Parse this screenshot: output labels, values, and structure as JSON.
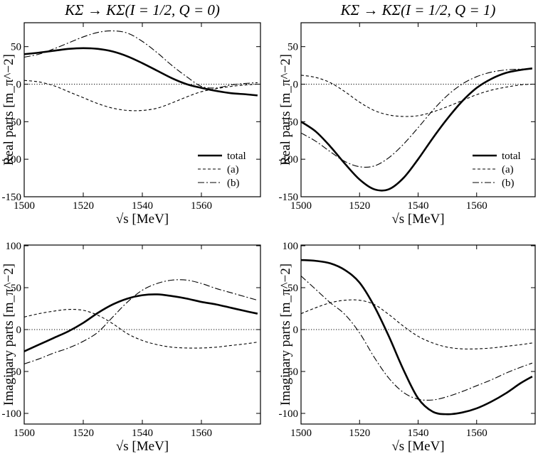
{
  "chart_data": [
    {
      "type": "line",
      "title": "KΣ → KΣ(I = 1/2, Q = 0)",
      "xlabel": "√s  [MeV]",
      "ylabel": "Real parts [m_π^−2]",
      "xlim": [
        1500,
        1580
      ],
      "ylim": [
        -150,
        80
      ],
      "xticks": [
        1500,
        1520,
        1540,
        1560
      ],
      "xtick_labels": [
        "1500",
        "1520",
        "1540",
        "1560"
      ],
      "yticks": [
        -150,
        -100,
        -50,
        0,
        50
      ],
      "ytick_labels": [
        "-150",
        "-100",
        "-50",
        "0",
        "50"
      ],
      "legend_placement": "bottom-right",
      "series": [
        {
          "name": "total",
          "style": "solid-thick",
          "x": [
            1500,
            1505,
            1510,
            1515,
            1520,
            1525,
            1530,
            1535,
            1540,
            1545,
            1550,
            1555,
            1560,
            1565,
            1570,
            1575,
            1579
          ],
          "values": [
            40,
            42,
            44.5,
            47,
            48,
            47,
            43.5,
            37,
            28,
            18,
            8,
            0,
            -5,
            -9,
            -12,
            -13.5,
            -15
          ]
        },
        {
          "name": "(a)",
          "style": "dashed",
          "x": [
            1500,
            1505,
            1510,
            1515,
            1520,
            1525,
            1530,
            1535,
            1540,
            1545,
            1550,
            1555,
            1560,
            1565,
            1570,
            1575,
            1579
          ],
          "values": [
            5,
            3,
            -2,
            -10,
            -18,
            -26,
            -32,
            -35,
            -35,
            -32,
            -25,
            -17,
            -10,
            -6,
            -3,
            -1,
            0
          ]
        },
        {
          "name": "(b)",
          "style": "dash-dot",
          "x": [
            1500,
            1505,
            1510,
            1515,
            1520,
            1525,
            1530,
            1535,
            1540,
            1545,
            1550,
            1555,
            1560,
            1565,
            1570,
            1575,
            1579
          ],
          "values": [
            36,
            40,
            47,
            55,
            63,
            69,
            71,
            68,
            57,
            42,
            25,
            10,
            -3,
            -5,
            -1,
            1,
            2
          ]
        }
      ]
    },
    {
      "type": "line",
      "title": "KΣ → KΣ(I = 1/2, Q = 1)",
      "xlabel": "√s  [MeV]",
      "ylabel": "Real parts [m_π^−2]",
      "xlim": [
        1500,
        1580
      ],
      "ylim": [
        -150,
        80
      ],
      "xticks": [
        1500,
        1520,
        1540,
        1560
      ],
      "xtick_labels": [
        "1500",
        "1520",
        "1540",
        "1560"
      ],
      "yticks": [
        -150,
        -100,
        -50,
        0,
        50
      ],
      "ytick_labels": [
        "-150",
        "-100",
        "-50",
        "0",
        "50"
      ],
      "legend_placement": "bottom-right",
      "series": [
        {
          "name": "total",
          "style": "solid-thick",
          "x": [
            1500,
            1505,
            1510,
            1515,
            1520,
            1525,
            1530,
            1535,
            1540,
            1545,
            1550,
            1555,
            1560,
            1565,
            1570,
            1575,
            1579
          ],
          "values": [
            -50,
            -63,
            -83,
            -106,
            -127,
            -140,
            -140,
            -125,
            -100,
            -72,
            -46,
            -23,
            -5,
            7,
            15,
            19,
            21
          ]
        },
        {
          "name": "(a)",
          "style": "dashed",
          "x": [
            1500,
            1505,
            1510,
            1515,
            1520,
            1525,
            1530,
            1535,
            1540,
            1545,
            1550,
            1555,
            1560,
            1565,
            1570,
            1575,
            1579
          ],
          "values": [
            12,
            9,
            2,
            -10,
            -24,
            -35,
            -41,
            -43,
            -42,
            -37,
            -30,
            -22,
            -14,
            -8,
            -4,
            -1,
            0
          ]
        },
        {
          "name": "(b)",
          "style": "dash-dot",
          "x": [
            1500,
            1505,
            1510,
            1515,
            1520,
            1525,
            1530,
            1535,
            1540,
            1545,
            1550,
            1555,
            1560,
            1565,
            1570,
            1575,
            1579
          ],
          "values": [
            -65,
            -76,
            -90,
            -103,
            -110,
            -109,
            -98,
            -80,
            -58,
            -35,
            -15,
            0,
            10,
            16,
            19,
            20,
            20
          ]
        }
      ]
    },
    {
      "type": "line",
      "title": "",
      "xlabel": "√s  [MeV]",
      "ylabel": "Imaginary parts [m_π^−2]",
      "xlim": [
        1500,
        1580
      ],
      "ylim": [
        -110,
        100
      ],
      "xticks": [
        1500,
        1520,
        1540,
        1560
      ],
      "xtick_labels": [
        "1500",
        "1520",
        "1540",
        "1560"
      ],
      "yticks": [
        -100,
        -50,
        0,
        50,
        100
      ],
      "ytick_labels": [
        "-100",
        "-50",
        "0",
        "50",
        "100"
      ],
      "series": [
        {
          "name": "total",
          "style": "solid-thick",
          "x": [
            1500,
            1505,
            1510,
            1515,
            1520,
            1525,
            1530,
            1535,
            1540,
            1545,
            1550,
            1555,
            1560,
            1565,
            1570,
            1575,
            1579
          ],
          "values": [
            -26,
            -18,
            -10,
            -2,
            8,
            20,
            30,
            37,
            41,
            42,
            40,
            37,
            33,
            30,
            26,
            22,
            19
          ]
        },
        {
          "name": "(a)",
          "style": "dashed",
          "x": [
            1500,
            1505,
            1510,
            1515,
            1520,
            1525,
            1530,
            1535,
            1540,
            1545,
            1550,
            1555,
            1560,
            1565,
            1570,
            1575,
            1579
          ],
          "values": [
            15,
            19,
            22,
            24,
            23,
            17,
            7,
            -5,
            -13,
            -18,
            -21,
            -22,
            -22,
            -21,
            -19,
            -17,
            -15
          ]
        },
        {
          "name": "(b)",
          "style": "dash-dot",
          "x": [
            1500,
            1505,
            1510,
            1515,
            1520,
            1525,
            1530,
            1535,
            1540,
            1545,
            1550,
            1555,
            1560,
            1565,
            1570,
            1575,
            1579
          ],
          "values": [
            -41,
            -35,
            -28,
            -22,
            -14,
            -3,
            15,
            33,
            47,
            55,
            59,
            59,
            55,
            49,
            44,
            39,
            35
          ]
        }
      ]
    },
    {
      "type": "line",
      "title": "",
      "xlabel": "√s  [MeV]",
      "ylabel": "Imaginary parts [m_π^−2]",
      "xlim": [
        1500,
        1580
      ],
      "ylim": [
        -110,
        100
      ],
      "xticks": [
        1500,
        1520,
        1540,
        1560
      ],
      "xtick_labels": [
        "1500",
        "1520",
        "1540",
        "1560"
      ],
      "yticks": [
        -100,
        -50,
        0,
        50,
        100
      ],
      "ytick_labels": [
        "-100",
        "-50",
        "0",
        "50",
        "100"
      ],
      "series": [
        {
          "name": "total",
          "style": "solid-thick",
          "x": [
            1500,
            1505,
            1510,
            1515,
            1520,
            1525,
            1530,
            1535,
            1540,
            1545,
            1550,
            1555,
            1560,
            1565,
            1570,
            1575,
            1579
          ],
          "values": [
            83,
            82,
            79,
            71,
            56,
            28,
            -8,
            -48,
            -82,
            -98,
            -101,
            -99,
            -94,
            -86,
            -76,
            -64,
            -56
          ]
        },
        {
          "name": "(a)",
          "style": "dashed",
          "x": [
            1500,
            1505,
            1510,
            1515,
            1520,
            1525,
            1530,
            1535,
            1540,
            1545,
            1550,
            1555,
            1560,
            1565,
            1570,
            1575,
            1579
          ],
          "values": [
            19,
            26,
            32,
            35,
            35,
            30,
            18,
            4,
            -8,
            -16,
            -21,
            -23,
            -23,
            -22,
            -20,
            -18,
            -16
          ]
        },
        {
          "name": "(b)",
          "style": "dash-dot",
          "x": [
            1500,
            1505,
            1510,
            1515,
            1520,
            1525,
            1530,
            1535,
            1540,
            1545,
            1550,
            1555,
            1560,
            1565,
            1570,
            1575,
            1579
          ],
          "values": [
            64,
            48,
            32,
            18,
            -4,
            -33,
            -58,
            -75,
            -83,
            -84,
            -80,
            -74,
            -67,
            -60,
            -52,
            -45,
            -40
          ]
        }
      ]
    }
  ]
}
